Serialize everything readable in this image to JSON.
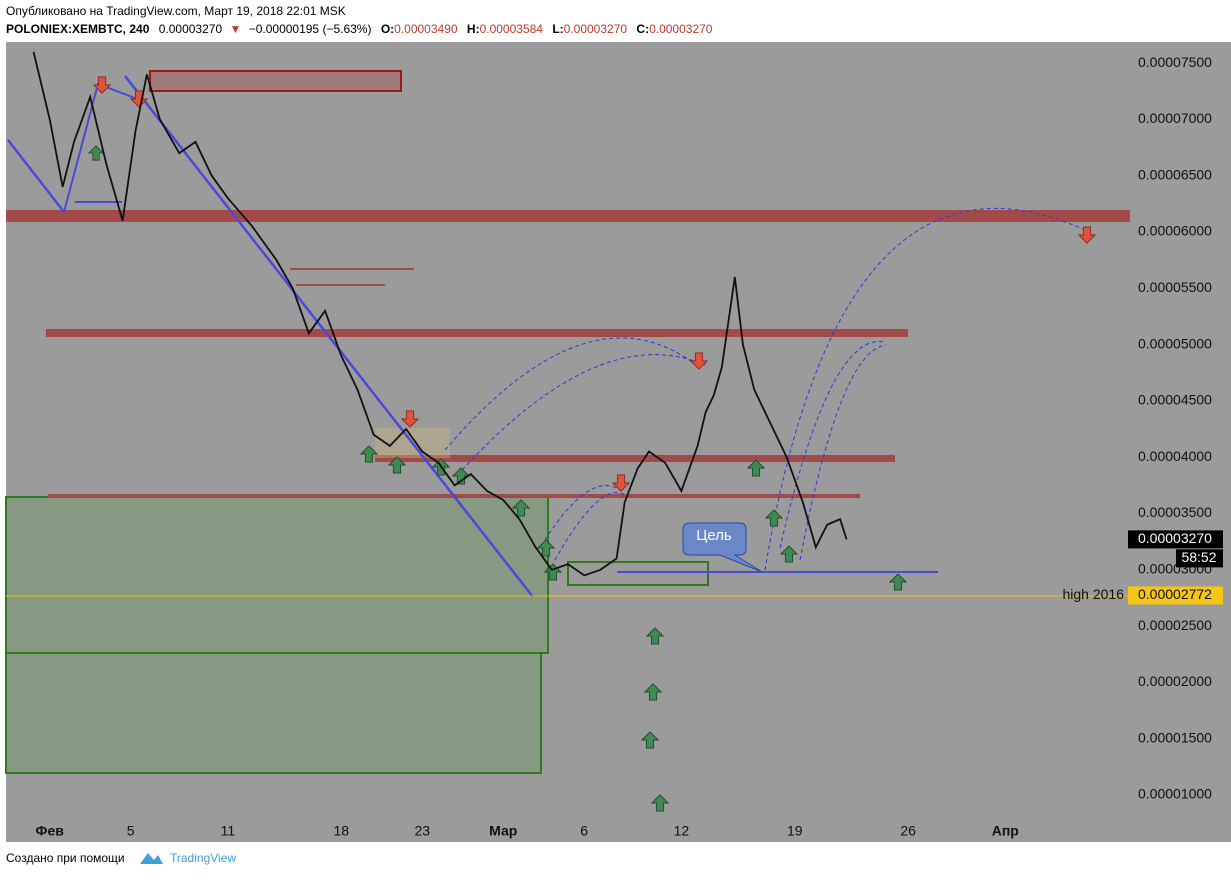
{
  "header": {
    "published": "Опубликовано на TradingView.com, Март 19, 2018 22:01 MSK",
    "symbol": "POLONIEX:XEMBTC, 240",
    "last": "0.00003270",
    "change_arrow": "▼",
    "change": "−0.00000195 (−5.63%)",
    "ohlc": [
      {
        "label": "O:",
        "value": "0.00003490"
      },
      {
        "label": "H:",
        "value": "0.00003584"
      },
      {
        "label": "L:",
        "value": "0.00003270"
      },
      {
        "label": "C:",
        "value": "0.00003270"
      }
    ]
  },
  "chart_data": {
    "type": "line",
    "color": "#111111",
    "x": [
      -1,
      0,
      0.8,
      1.5,
      2.5,
      3.5,
      4.5,
      5.3,
      6,
      6.8,
      8,
      9,
      10,
      11,
      12.5,
      14,
      15,
      16,
      17,
      18,
      19,
      20,
      21,
      22,
      23,
      24,
      25,
      26,
      27,
      28,
      29,
      30,
      31,
      32,
      33,
      34,
      35,
      35.5,
      36.3,
      37,
      38,
      39,
      40,
      40.5,
      41,
      41.5,
      42.3,
      42.8,
      43.5,
      44.5,
      45.5,
      46.5,
      47.3,
      48,
      48.8,
      49.2
    ],
    "values": [
      7.6e-05,
      7e-05,
      6.4e-05,
      6.8e-05,
      7.2e-05,
      6.6e-05,
      6.1e-05,
      6.9e-05,
      7.4e-05,
      7e-05,
      6.7e-05,
      6.8e-05,
      6.5e-05,
      6.3e-05,
      6.05e-05,
      5.75e-05,
      5.5e-05,
      5.1e-05,
      5.3e-05,
      4.9e-05,
      4.6e-05,
      4.2e-05,
      4.1e-05,
      4.25e-05,
      4.05e-05,
      3.95e-05,
      3.75e-05,
      3.85e-05,
      3.7e-05,
      3.62e-05,
      3.45e-05,
      3.2e-05,
      3e-05,
      3.05e-05,
      2.95e-05,
      3e-05,
      3.1e-05,
      3.6e-05,
      3.9e-05,
      4.05e-05,
      3.95e-05,
      3.7e-05,
      4.1e-05,
      4.4e-05,
      4.55e-05,
      4.8e-05,
      5.6e-05,
      5e-05,
      4.6e-05,
      4.3e-05,
      4e-05,
      3.6e-05,
      3.2e-05,
      3.4e-05,
      3.45e-05,
      3.27e-05
    ],
    "xlim": [
      -2.7,
      66.7
    ],
    "ylim": [
      7.78e-06,
      7.687e-05
    ],
    "xticks": [
      {
        "value": 0,
        "label": "Фев"
      },
      5,
      11,
      18,
      23,
      {
        "value": 28,
        "label": "Мар"
      },
      {
        "value": 33,
        "label": "6"
      },
      {
        "value": 39,
        "label": "12"
      },
      {
        "value": 46,
        "label": "19"
      },
      {
        "value": 53,
        "label": "26"
      },
      {
        "value": 59,
        "label": "Апр"
      }
    ],
    "yticks": [
      {
        "value": 1e-05,
        "label": "0.00001000"
      },
      {
        "value": 1.5e-05,
        "label": "0.00001500"
      },
      {
        "value": 2e-05,
        "label": "0.00002000"
      },
      {
        "value": 2.5e-05,
        "label": "0.00002500"
      },
      {
        "value": 3e-05,
        "label": "0.00003000"
      },
      {
        "value": 3.5e-05,
        "label": "0.00003500"
      },
      {
        "value": 4e-05,
        "label": "0.00004000"
      },
      {
        "value": 4.5e-05,
        "label": "0.00004500"
      },
      {
        "value": 5e-05,
        "label": "0.00005000"
      },
      {
        "value": 5.5e-05,
        "label": "0.00005500"
      },
      {
        "value": 6e-05,
        "label": "0.00006000"
      },
      {
        "value": 6.5e-05,
        "label": "0.00006500"
      },
      {
        "value": 7e-05,
        "label": "0.00007000"
      },
      {
        "value": 7.5e-05,
        "label": "0.00007500"
      }
    ],
    "grid": false,
    "markers": [
      {
        "value": 3.27e-05,
        "value_label": "0.00003270",
        "timer": "58:52"
      },
      {
        "name": "high 2016",
        "value": 2.772e-05,
        "value_label": "0.00002772"
      }
    ],
    "annotations": [
      "Цель"
    ]
  },
  "footer": {
    "created_with": "Создано при помощи",
    "brand": "TradingView"
  }
}
